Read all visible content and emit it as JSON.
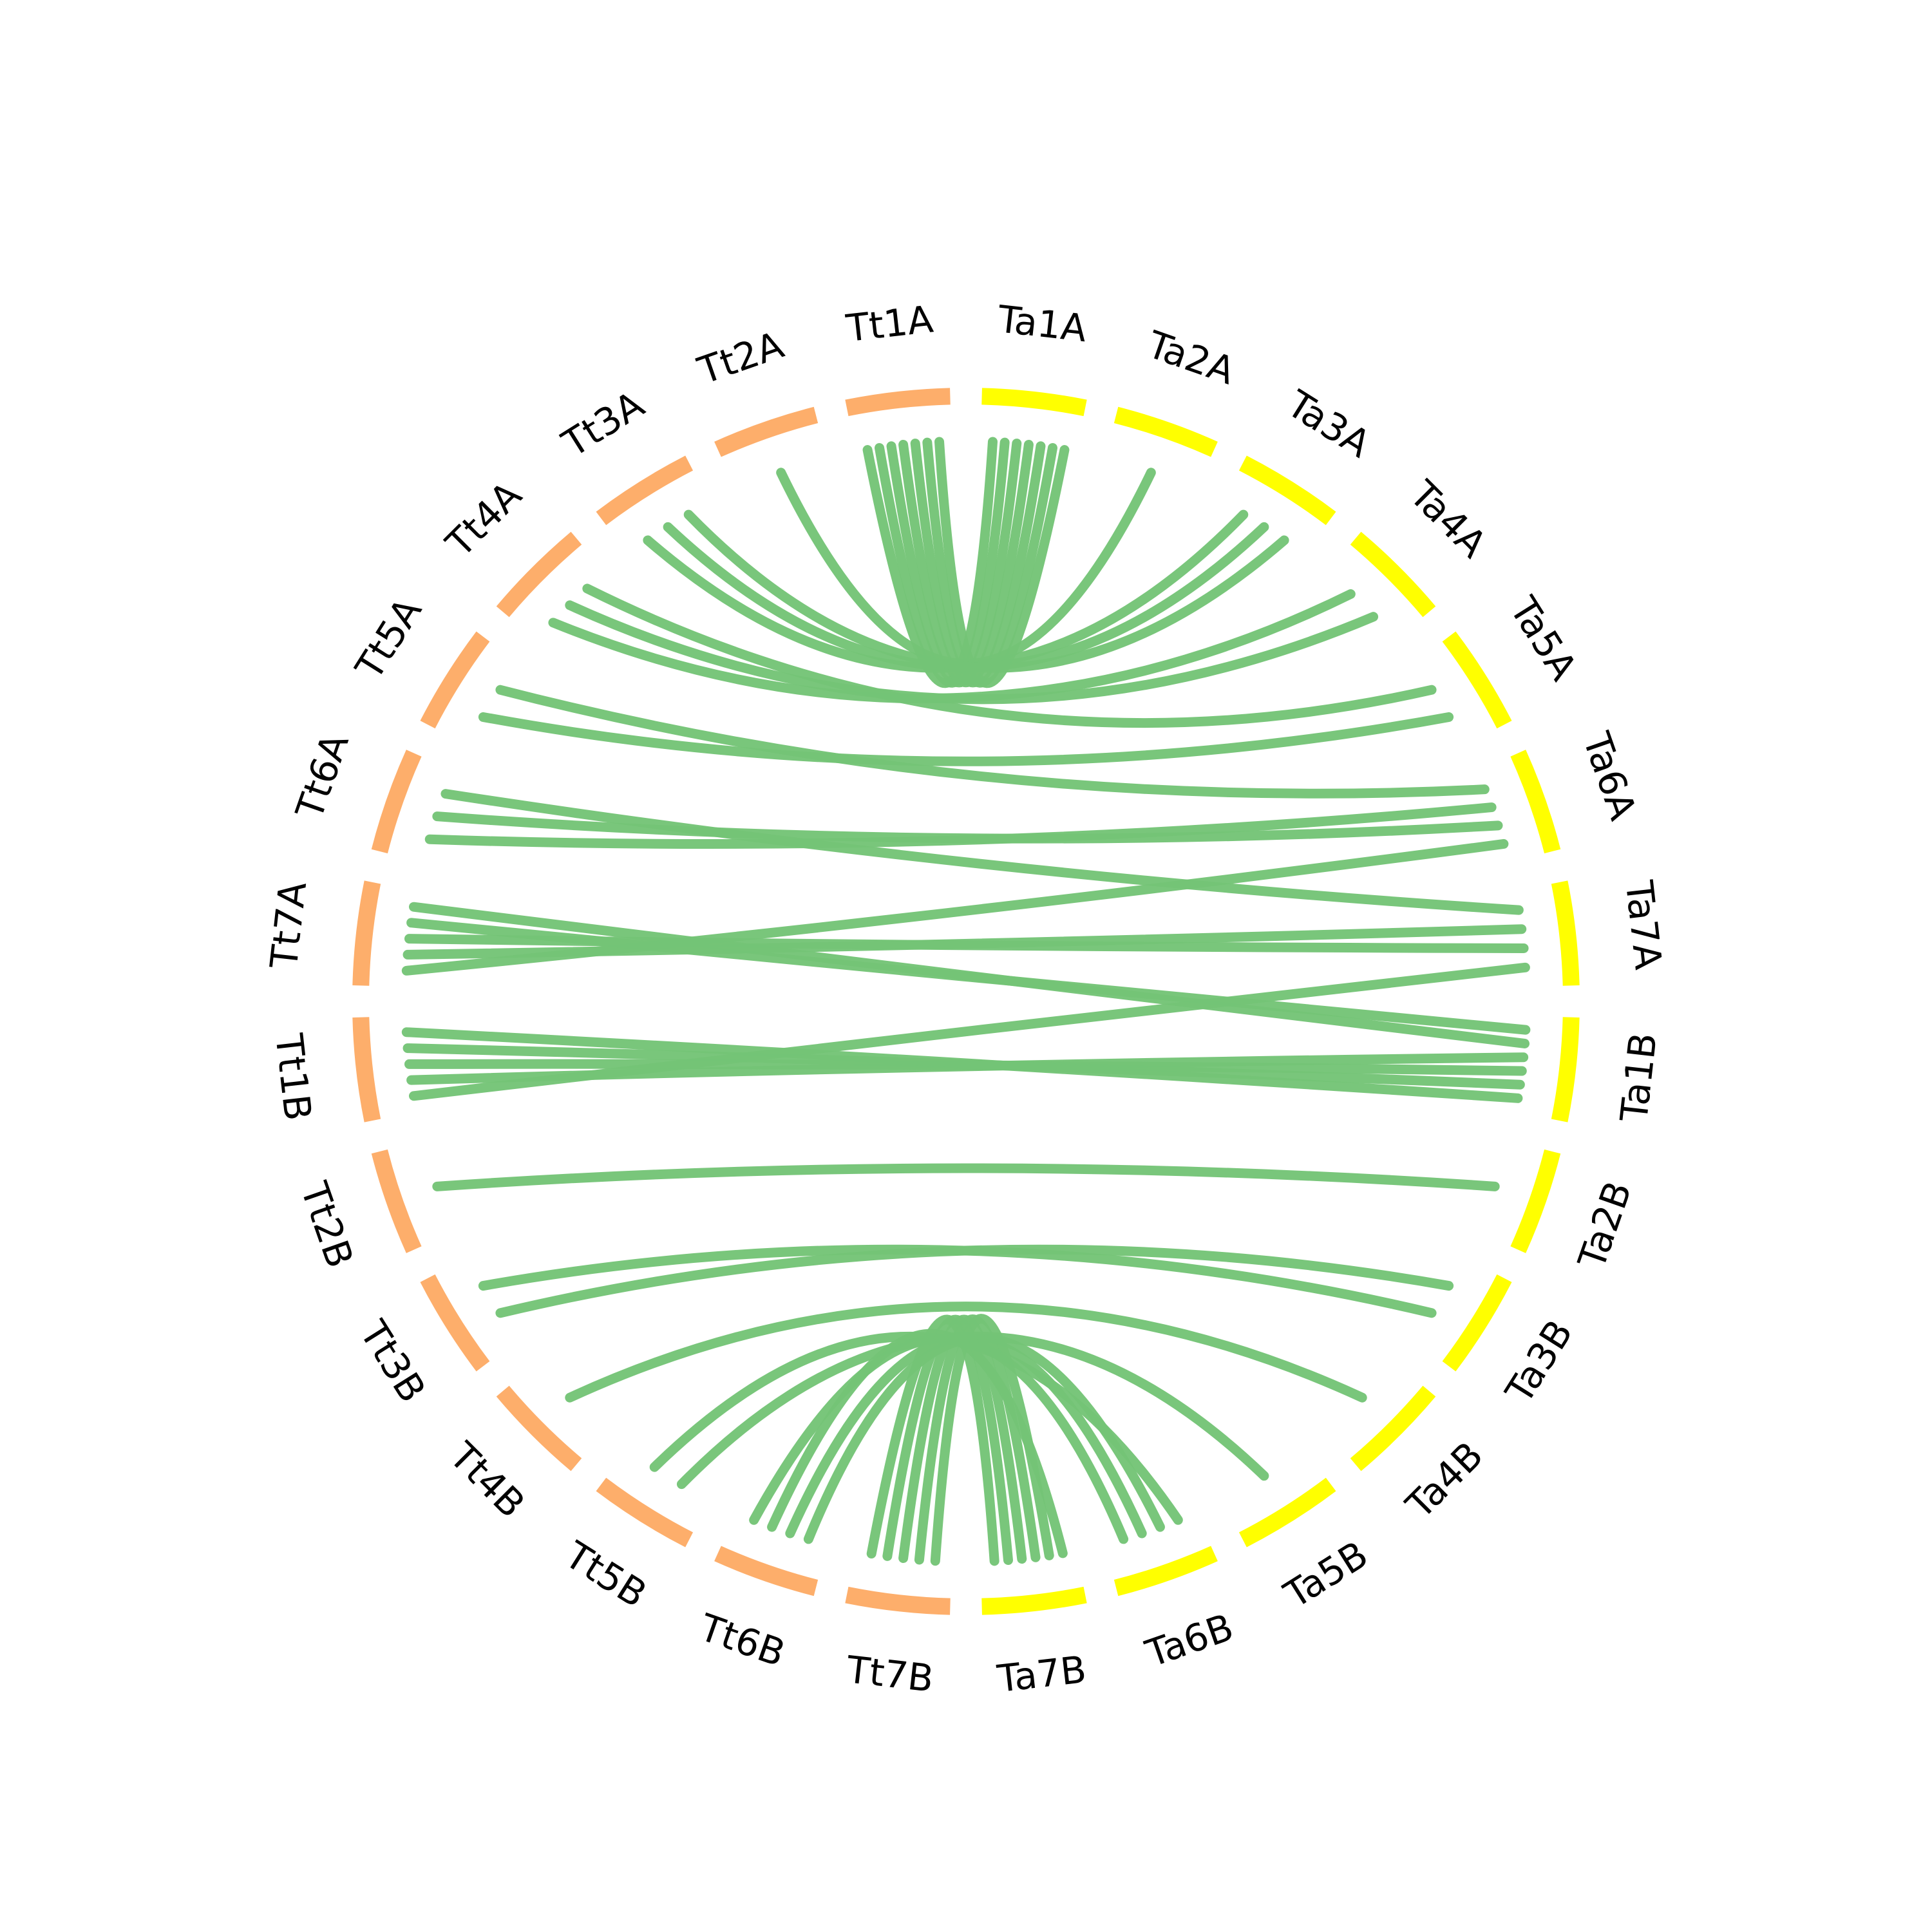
{
  "colors": {
    "tt": "#FDAE6B",
    "ta": "#FFFF00",
    "link": "#74C476"
  },
  "chromosomes": [
    {
      "name": "Ta1A",
      "group": "ta"
    },
    {
      "name": "Ta2A",
      "group": "ta"
    },
    {
      "name": "Ta3A",
      "group": "ta"
    },
    {
      "name": "Ta4A",
      "group": "ta"
    },
    {
      "name": "Ta5A",
      "group": "ta"
    },
    {
      "name": "Ta6A",
      "group": "ta"
    },
    {
      "name": "Ta7A",
      "group": "ta"
    },
    {
      "name": "Ta1B",
      "group": "ta"
    },
    {
      "name": "Ta2B",
      "group": "ta"
    },
    {
      "name": "Ta3B",
      "group": "ta"
    },
    {
      "name": "Ta4B",
      "group": "ta"
    },
    {
      "name": "Ta5B",
      "group": "ta"
    },
    {
      "name": "Ta6B",
      "group": "ta"
    },
    {
      "name": "Ta7B",
      "group": "ta"
    },
    {
      "name": "Tt7B",
      "group": "tt"
    },
    {
      "name": "Tt6B",
      "group": "tt"
    },
    {
      "name": "Tt5B",
      "group": "tt"
    },
    {
      "name": "Tt4B",
      "group": "tt"
    },
    {
      "name": "Tt3B",
      "group": "tt"
    },
    {
      "name": "Tt2B",
      "group": "tt"
    },
    {
      "name": "Tt1B",
      "group": "tt"
    },
    {
      "name": "Tt7A",
      "group": "tt"
    },
    {
      "name": "Tt6A",
      "group": "tt"
    },
    {
      "name": "Tt5A",
      "group": "tt"
    },
    {
      "name": "Tt4A",
      "group": "tt"
    },
    {
      "name": "Tt3A",
      "group": "tt"
    },
    {
      "name": "Tt2A",
      "group": "tt"
    },
    {
      "name": "Tt1A",
      "group": "tt"
    }
  ],
  "links": [
    {
      "from": "Tt1A",
      "to": "Ta1A"
    },
    {
      "from": "Tt1A",
      "to": "Ta1A"
    },
    {
      "from": "Tt1A",
      "to": "Ta1A"
    },
    {
      "from": "Tt1A",
      "to": "Ta1A"
    },
    {
      "from": "Tt1A",
      "to": "Ta1A"
    },
    {
      "from": "Tt1A",
      "to": "Ta1A"
    },
    {
      "from": "Tt1A",
      "to": "Ta1A"
    },
    {
      "from": "Tt2A",
      "to": "Ta2A"
    },
    {
      "from": "Tt3A",
      "to": "Ta3A"
    },
    {
      "from": "Tt3A",
      "to": "Ta3A"
    },
    {
      "from": "Tt3A",
      "to": "Ta3A"
    },
    {
      "from": "Tt4A",
      "to": "Ta4A"
    },
    {
      "from": "Tt4A",
      "to": "Ta4A"
    },
    {
      "from": "Tt4A",
      "to": "Ta5A"
    },
    {
      "from": "Tt5A",
      "to": "Ta5A"
    },
    {
      "from": "Tt5A",
      "to": "Ta6A"
    },
    {
      "from": "Tt6A",
      "to": "Ta6A"
    },
    {
      "from": "Tt6A",
      "to": "Ta6A"
    },
    {
      "from": "Tt6A",
      "to": "Ta7A"
    },
    {
      "from": "Tt7A",
      "to": "Ta6A"
    },
    {
      "from": "Tt7A",
      "to": "Ta7A"
    },
    {
      "from": "Tt7A",
      "to": "Ta7A"
    },
    {
      "from": "Tt7A",
      "to": "Ta1B"
    },
    {
      "from": "Tt7A",
      "to": "Ta1B"
    },
    {
      "from": "Tt1B",
      "to": "Ta7A"
    },
    {
      "from": "Tt1B",
      "to": "Ta1B"
    },
    {
      "from": "Tt1B",
      "to": "Ta1B"
    },
    {
      "from": "Tt1B",
      "to": "Ta1B"
    },
    {
      "from": "Tt1B",
      "to": "Ta1B"
    },
    {
      "from": "Tt2B",
      "to": "Ta2B"
    },
    {
      "from": "Tt3B",
      "to": "Ta3B"
    },
    {
      "from": "Tt3B",
      "to": "Ta3B"
    },
    {
      "from": "Tt4B",
      "to": "Ta4B"
    },
    {
      "from": "Tt5B",
      "to": "Ta5B"
    },
    {
      "from": "Tt5B",
      "to": "Ta6B"
    },
    {
      "from": "Tt6B",
      "to": "Ta6B"
    },
    {
      "from": "Tt6B",
      "to": "Ta6B"
    },
    {
      "from": "Tt6B",
      "to": "Ta7B"
    },
    {
      "from": "Tt6B",
      "to": "Ta6B"
    },
    {
      "from": "Tt7B",
      "to": "Ta7B"
    },
    {
      "from": "Tt7B",
      "to": "Ta7B"
    },
    {
      "from": "Tt7B",
      "to": "Ta7B"
    },
    {
      "from": "Tt7B",
      "to": "Ta7B"
    },
    {
      "from": "Tt7B",
      "to": "Ta7B"
    }
  ]
}
